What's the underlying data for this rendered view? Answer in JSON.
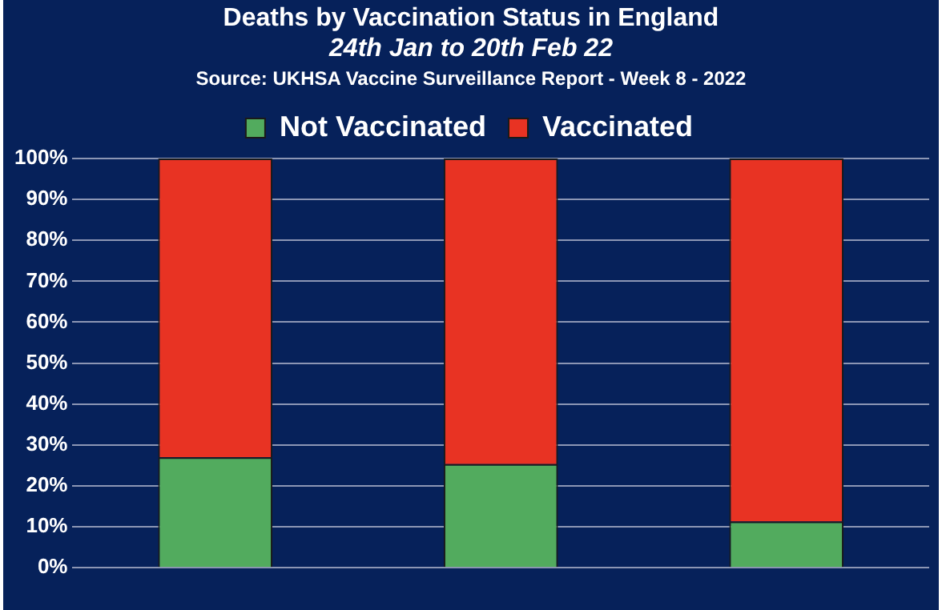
{
  "chart_data": {
    "type": "bar",
    "title": "Deaths by Vaccination Status in England",
    "subtitle": "24th Jan to 20th Feb 22",
    "annotations": [
      "Source: UKHSA Vaccine Surveillance Report - Week 8 - 2022"
    ],
    "categories": [
      null,
      null,
      null
    ],
    "series": [
      {
        "name": "Not Vaccinated",
        "color": "#52ab5e",
        "values": [
          27,
          25.3,
          11.3
        ]
      },
      {
        "name": "Vaccinated",
        "color": "#e83323",
        "values": [
          73,
          74.7,
          88.7
        ]
      }
    ],
    "stacked": true,
    "ylim": [
      0,
      100
    ],
    "yticks": [
      {
        "value": 0,
        "label": "0%"
      },
      {
        "value": 10,
        "label": "10%"
      },
      {
        "value": 20,
        "label": "20%"
      },
      {
        "value": 30,
        "label": "30%"
      },
      {
        "value": 40,
        "label": "40%"
      },
      {
        "value": 50,
        "label": "50%"
      },
      {
        "value": 60,
        "label": "60%"
      },
      {
        "value": 70,
        "label": "70%"
      },
      {
        "value": 80,
        "label": "80%"
      },
      {
        "value": 90,
        "label": "90%"
      },
      {
        "value": 100,
        "label": "100%"
      }
    ],
    "grid": "y",
    "legend": "top"
  }
}
